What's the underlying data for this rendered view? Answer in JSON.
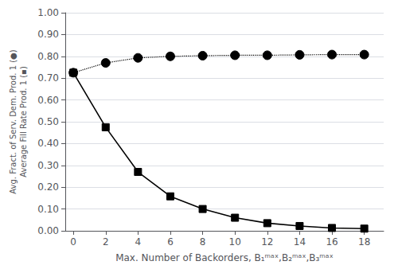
{
  "chart_data": {
    "type": "line",
    "xlabel": "Max. Number of Backorders, B₁ᵐᵃˣ,B₂ᵐᵃˣ,B₃ᵐᵃˣ",
    "ylabel": "Avg. Fract. of Serv. Dem. Prod. 1 (●)\nAverage Fill Rate Prod. 1 (▪)",
    "x": [
      0,
      2,
      4,
      6,
      8,
      10,
      12,
      14,
      16,
      18
    ],
    "series": [
      {
        "values": [
          0.725,
          0.77,
          0.793,
          0.8,
          0.803,
          0.805,
          0.805,
          0.807,
          0.808,
          0.808
        ],
        "color": "#000000",
        "marker": "circle",
        "line_style": "dotted"
      },
      {
        "values": [
          0.725,
          0.475,
          0.27,
          0.158,
          0.1,
          0.06,
          0.035,
          0.022,
          0.013,
          0.01
        ],
        "color": "#000000",
        "marker": "square",
        "line_style": "solid"
      }
    ],
    "xlim": [
      -0.5,
      19.2
    ],
    "xticks": [
      0,
      2,
      4,
      6,
      8,
      10,
      12,
      14,
      16,
      18
    ],
    "ylim": [
      0.0,
      1.0
    ],
    "yticks": [
      {
        "value": 0.0,
        "label": "0.00"
      },
      {
        "value": 0.1,
        "label": "0.10"
      },
      {
        "value": 0.2,
        "label": "0.20"
      },
      {
        "value": 0.3,
        "label": "0.30"
      },
      {
        "value": 0.4,
        "label": "0.40"
      },
      {
        "value": 0.5,
        "label": "0.50"
      },
      {
        "value": 0.6,
        "label": "0.60"
      },
      {
        "value": 0.7,
        "label": "0.70"
      },
      {
        "value": 0.8,
        "label": "0.80"
      },
      {
        "value": 0.9,
        "label": "0.90"
      },
      {
        "value": 1.0,
        "label": "1.00"
      }
    ],
    "grid": true
  }
}
